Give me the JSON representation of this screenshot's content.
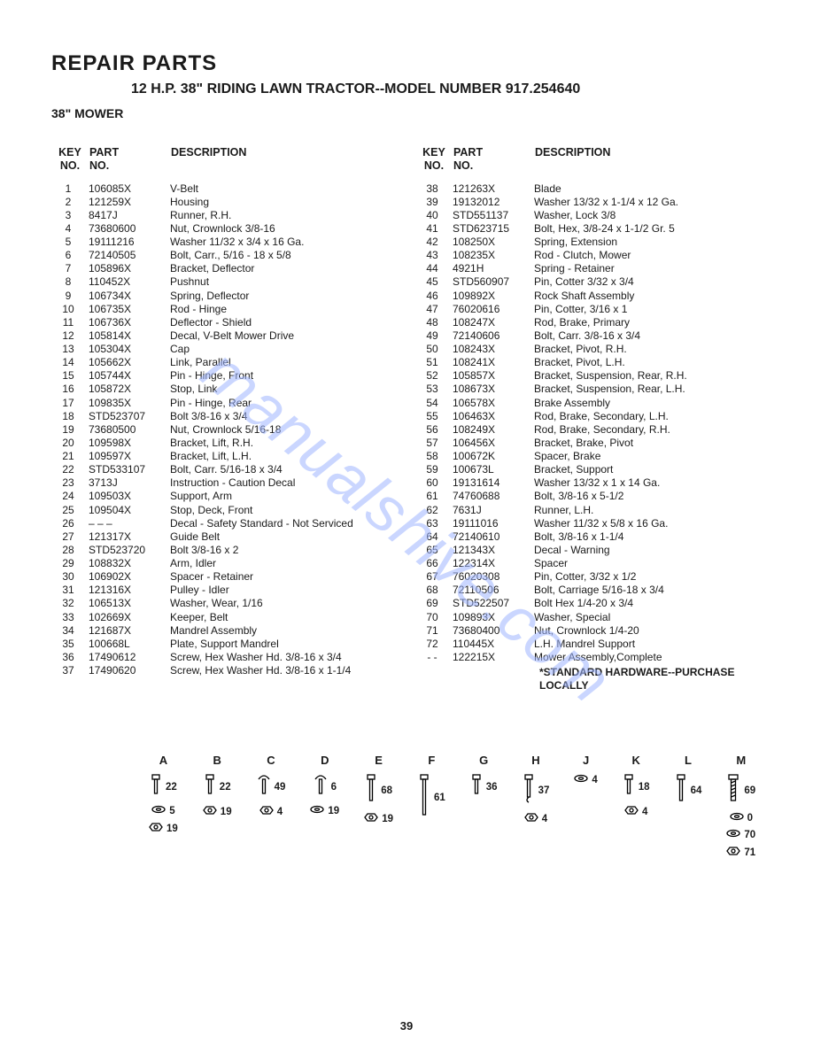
{
  "title": "REPAIR PARTS",
  "subtitle": "12 H.P. 38\" RIDING LAWN TRACTOR--MODEL NUMBER 917.254640",
  "section": "38\" MOWER",
  "headers": {
    "key_line1": "KEY",
    "key_line2": "NO.",
    "part_line1": "PART",
    "part_line2": "NO.",
    "desc": "DESCRIPTION"
  },
  "left": [
    {
      "k": "1",
      "p": "106085X",
      "d": "V-Belt"
    },
    {
      "k": "2",
      "p": "121259X",
      "d": "Housing"
    },
    {
      "k": "3",
      "p": "8417J",
      "d": "Runner, R.H."
    },
    {
      "k": "4",
      "p": "73680600",
      "d": "Nut, Crownlock 3/8-16"
    },
    {
      "k": "5",
      "p": "19111216",
      "d": "Washer 11/32 x 3/4 x 16 Ga."
    },
    {
      "k": "6",
      "p": "72140505",
      "d": "Bolt, Carr., 5/16 - 18 x 5/8"
    },
    {
      "k": "7",
      "p": "105896X",
      "d": "Bracket, Deflector"
    },
    {
      "k": "8",
      "p": "110452X",
      "d": "Pushnut"
    },
    {
      "k": "9",
      "p": "106734X",
      "d": "Spring, Deflector"
    },
    {
      "k": "10",
      "p": "106735X",
      "d": "Rod - Hinge"
    },
    {
      "k": "11",
      "p": "106736X",
      "d": "Deflector - Shield"
    },
    {
      "k": "12",
      "p": "105814X",
      "d": "Decal, V-Belt Mower Drive"
    },
    {
      "k": "13",
      "p": "105304X",
      "d": "Cap"
    },
    {
      "k": "14",
      "p": "105662X",
      "d": "Link, Parallel"
    },
    {
      "k": "15",
      "p": "105744X",
      "d": "Pin - Hinge, Front"
    },
    {
      "k": "16",
      "p": "105872X",
      "d": "Stop, Link"
    },
    {
      "k": "17",
      "p": "109835X",
      "d": "Pin - Hinge, Rear"
    },
    {
      "k": "18",
      "p": "STD523707",
      "d": "Bolt 3/8-16 x 3/4"
    },
    {
      "k": "19",
      "p": "73680500",
      "d": "Nut, Crownlock 5/16-18"
    },
    {
      "k": "20",
      "p": "109598X",
      "d": "Bracket, Lift, R.H."
    },
    {
      "k": "21",
      "p": "109597X",
      "d": "Bracket, Lift, L.H."
    },
    {
      "k": "22",
      "p": "STD533107",
      "d": "Bolt, Carr. 5/16-18 x 3/4"
    },
    {
      "k": "23",
      "p": "3713J",
      "d": "Instruction - Caution Decal"
    },
    {
      "k": "24",
      "p": "109503X",
      "d": "Support, Arm"
    },
    {
      "k": "25",
      "p": "109504X",
      "d": "Stop, Deck, Front"
    },
    {
      "k": "26",
      "p": "– – –",
      "d": "Decal - Safety Standard - Not Serviced"
    },
    {
      "k": "27",
      "p": "121317X",
      "d": "Guide Belt"
    },
    {
      "k": "28",
      "p": "STD523720",
      "d": "Bolt 3/8-16 x 2"
    },
    {
      "k": "29",
      "p": "108832X",
      "d": "Arm, Idler"
    },
    {
      "k": "30",
      "p": "106902X",
      "d": "Spacer - Retainer"
    },
    {
      "k": "31",
      "p": "121316X",
      "d": "Pulley - Idler"
    },
    {
      "k": "32",
      "p": "106513X",
      "d": "Washer, Wear, 1/16"
    },
    {
      "k": "33",
      "p": "102669X",
      "d": "Keeper, Belt"
    },
    {
      "k": "34",
      "p": "121687X",
      "d": "Mandrel Assembly"
    },
    {
      "k": "35",
      "p": "100668L",
      "d": "Plate, Support Mandrel"
    },
    {
      "k": "36",
      "p": "17490612",
      "d": "Screw, Hex Washer Hd. 3/8-16 x 3/4"
    },
    {
      "k": "37",
      "p": "17490620",
      "d": "Screw, Hex Washer Hd. 3/8-16 x 1-1/4"
    }
  ],
  "right": [
    {
      "k": "38",
      "p": "121263X",
      "d": "Blade"
    },
    {
      "k": "39",
      "p": "19132012",
      "d": "Washer 13/32 x 1-1/4 x 12 Ga."
    },
    {
      "k": "40",
      "p": "STD551137",
      "d": "Washer, Lock 3/8"
    },
    {
      "k": "41",
      "p": "STD623715",
      "d": "Bolt, Hex, 3/8-24 x 1-1/2 Gr. 5"
    },
    {
      "k": "42",
      "p": "108250X",
      "d": "Spring, Extension"
    },
    {
      "k": "43",
      "p": "108235X",
      "d": "Rod - Clutch, Mower"
    },
    {
      "k": "44",
      "p": "4921H",
      "d": "Spring - Retainer"
    },
    {
      "k": "45",
      "p": "STD560907",
      "d": "Pin, Cotter 3/32 x 3/4"
    },
    {
      "k": "46",
      "p": "109892X",
      "d": "Rock Shaft Assembly"
    },
    {
      "k": "47",
      "p": "76020616",
      "d": "Pin, Cotter, 3/16 x 1"
    },
    {
      "k": "48",
      "p": "108247X",
      "d": "Rod, Brake, Primary"
    },
    {
      "k": "49",
      "p": "72140606",
      "d": "Bolt, Carr. 3/8-16 x 3/4"
    },
    {
      "k": "50",
      "p": "108243X",
      "d": "Bracket, Pivot, R.H."
    },
    {
      "k": "51",
      "p": "108241X",
      "d": "Bracket, Pivot, L.H."
    },
    {
      "k": "52",
      "p": "105857X",
      "d": "Bracket, Suspension, Rear, R.H."
    },
    {
      "k": "53",
      "p": "108673X",
      "d": "Bracket, Suspension, Rear, L.H."
    },
    {
      "k": "54",
      "p": "106578X",
      "d": "Brake Assembly"
    },
    {
      "k": "55",
      "p": "106463X",
      "d": "Rod, Brake, Secondary, L.H."
    },
    {
      "k": "56",
      "p": "108249X",
      "d": "Rod, Brake, Secondary, R.H."
    },
    {
      "k": "57",
      "p": "106456X",
      "d": "Bracket, Brake, Pivot"
    },
    {
      "k": "58",
      "p": "100672K",
      "d": "Spacer, Brake"
    },
    {
      "k": "59",
      "p": "100673L",
      "d": "Bracket, Support"
    },
    {
      "k": "60",
      "p": "19131614",
      "d": "Washer 13/32 x 1 x 14 Ga."
    },
    {
      "k": "61",
      "p": "74760688",
      "d": "Bolt, 3/8-16 x  5-1/2"
    },
    {
      "k": "62",
      "p": "7631J",
      "d": "Runner, L.H."
    },
    {
      "k": "63",
      "p": "19111016",
      "d": "Washer 11/32 x 5/8 x 16 Ga."
    },
    {
      "k": "64",
      "p": "72140610",
      "d": "Bolt, 3/8-16 x 1-1/4"
    },
    {
      "k": "65",
      "p": "121343X",
      "d": "Decal - Warning"
    },
    {
      "k": "66",
      "p": "122314X",
      "d": "Spacer"
    },
    {
      "k": "67",
      "p": "76020308",
      "d": "Pin, Cotter, 3/32 x 1/2"
    },
    {
      "k": "68",
      "p": "72110506",
      "d": "Bolt, Carriage 5/16-18 x 3/4"
    },
    {
      "k": "69",
      "p": "STD522507",
      "d": "Bolt Hex 1/4-20 x 3/4"
    },
    {
      "k": "70",
      "p": "109893X",
      "d": "Washer, Special"
    },
    {
      "k": "71",
      "p": "73680400",
      "d": "Nut, Crownlock 1/4-20"
    },
    {
      "k": "72",
      "p": "110445X",
      "d": "L.H. Mandrel Support"
    },
    {
      "k": "- -",
      "p": "122215X",
      "d": "Mower Assembly,Complete"
    }
  ],
  "footnote": "*STANDARD HARDWARE--PURCHASE LOCALLY",
  "watermark": "manualshive.com",
  "page_number": "39",
  "hardware": [
    {
      "letter": "A",
      "rows": [
        {
          "icon": "bolt-short",
          "n": "22"
        },
        {
          "icon": "washer",
          "n": "5"
        },
        {
          "icon": "nut",
          "n": "19"
        }
      ]
    },
    {
      "letter": "B",
      "rows": [
        {
          "icon": "bolt-short",
          "n": "22"
        },
        {
          "icon": "nut",
          "n": "19"
        }
      ]
    },
    {
      "letter": "C",
      "rows": [
        {
          "icon": "bolt-mush",
          "n": "49"
        },
        {
          "icon": "nut",
          "n": "4"
        }
      ]
    },
    {
      "letter": "D",
      "rows": [
        {
          "icon": "bolt-mush",
          "n": "6"
        },
        {
          "icon": "washer",
          "n": "19"
        }
      ]
    },
    {
      "letter": "E",
      "rows": [
        {
          "icon": "bolt-med",
          "n": "68"
        },
        {
          "icon": "nut",
          "n": "19"
        }
      ]
    },
    {
      "letter": "F",
      "rows": [
        {
          "icon": "bolt-long",
          "n": "61"
        }
      ]
    },
    {
      "letter": "G",
      "rows": [
        {
          "icon": "bolt-short",
          "n": "36"
        }
      ]
    },
    {
      "letter": "H",
      "rows": [
        {
          "icon": "bolt-hook",
          "n": "37"
        },
        {
          "icon": "nut",
          "n": "4"
        }
      ]
    },
    {
      "letter": "J",
      "rows": [
        {
          "icon": "washer",
          "n": "4"
        }
      ]
    },
    {
      "letter": "K",
      "rows": [
        {
          "icon": "bolt-short",
          "n": "18"
        },
        {
          "icon": "nut",
          "n": "4"
        }
      ]
    },
    {
      "letter": "L",
      "rows": [
        {
          "icon": "bolt-med",
          "n": "64"
        }
      ]
    },
    {
      "letter": "M",
      "rows": [
        {
          "icon": "bolt-thread",
          "n": "69"
        },
        {
          "icon": "washer",
          "n": "0"
        },
        {
          "icon": "washer",
          "n": "70"
        },
        {
          "icon": "nut",
          "n": "71"
        }
      ]
    }
  ]
}
